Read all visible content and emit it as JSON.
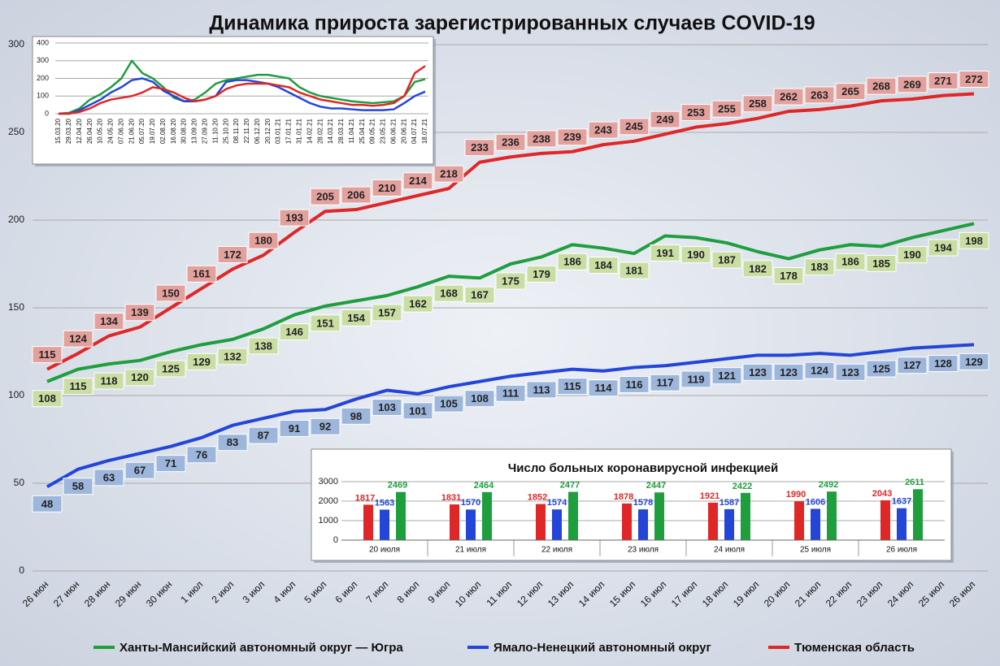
{
  "chart_data": [
    {
      "type": "line",
      "title": "Динамика прироста зарегистрированных случаев COVID-19",
      "categories": [
        "26 июн",
        "27 июн",
        "28 июн",
        "29 июн",
        "30 июн",
        "1 июл",
        "2 июл",
        "3 июл",
        "4 июл",
        "5 июл",
        "6 июл",
        "7 июл",
        "8 июл",
        "9 июл",
        "10 июл",
        "11 июл",
        "12 июл",
        "13 июл",
        "14 июл",
        "15 июл",
        "16 июл",
        "17 июл",
        "18 июл",
        "19 июл",
        "20 июл",
        "21 июл",
        "22 июл",
        "23 июл",
        "24 июл",
        "25 июл",
        "26 июл"
      ],
      "series": [
        {
          "name": "Ханты-Мансийский автономный округ — Югра",
          "color": "#1f9e3e",
          "label_color": "#c9dea3",
          "label_side": "below",
          "values": [
            108,
            115,
            118,
            120,
            125,
            129,
            132,
            138,
            146,
            151,
            154,
            157,
            162,
            168,
            167,
            175,
            179,
            186,
            184,
            181,
            191,
            190,
            187,
            182,
            178,
            183,
            186,
            185,
            190,
            194,
            198
          ]
        },
        {
          "name": "Ямало-Ненецкий автономный округ",
          "color": "#2346d8",
          "label_color": "#9db6db",
          "label_side": "below",
          "values": [
            48,
            58,
            63,
            67,
            71,
            76,
            83,
            87,
            91,
            92,
            98,
            103,
            101,
            105,
            108,
            111,
            113,
            115,
            114,
            116,
            117,
            119,
            121,
            123,
            123,
            124,
            123,
            125,
            127,
            128,
            129
          ]
        },
        {
          "name": "Тюменская область",
          "color": "#e02727",
          "label_color": "#e3a19e",
          "label_side": "above",
          "values": [
            115,
            124,
            134,
            139,
            150,
            161,
            172,
            180,
            193,
            205,
            206,
            210,
            214,
            218,
            233,
            236,
            238,
            239,
            243,
            245,
            249,
            253,
            255,
            258,
            262,
            263,
            265,
            268,
            269,
            271,
            272
          ]
        }
      ],
      "ylim": [
        0,
        300
      ],
      "yticks": [
        0,
        50,
        100,
        150,
        200,
        250,
        300
      ],
      "grid": true,
      "data_labels": true,
      "legend": "bottom"
    },
    {
      "type": "line",
      "categories": [
        "15.03.20",
        "29.03.20",
        "12.04.20",
        "26.04.20",
        "10.05.20",
        "24.05.20",
        "07.06.20",
        "21.06.20",
        "05.07.20",
        "19.07.20",
        "02.08.20",
        "16.08.20",
        "30.08.20",
        "13.09.20",
        "27.09.20",
        "11.10.20",
        "25.10.20",
        "08.11.20",
        "22.11.20",
        "06.12.20",
        "20.12.20",
        "03.01.21",
        "17.01.21",
        "31.01.21",
        "14.02.21",
        "28.02.21",
        "14.03.21",
        "28.03.21",
        "11.04.21",
        "25.04.21",
        "09.05.21",
        "23.05.21",
        "06.06.21",
        "20.06.21",
        "04.07.21",
        "18.07.21"
      ],
      "series": [
        {
          "color": "#1f9e3e",
          "values": [
            0,
            5,
            30,
            80,
            110,
            150,
            200,
            300,
            230,
            200,
            150,
            90,
            70,
            80,
            120,
            170,
            190,
            200,
            210,
            220,
            220,
            210,
            200,
            150,
            120,
            100,
            90,
            80,
            70,
            65,
            60,
            65,
            70,
            100,
            180,
            195
          ]
        },
        {
          "color": "#2346d8",
          "values": [
            0,
            0,
            20,
            50,
            80,
            120,
            150,
            190,
            200,
            180,
            130,
            100,
            70,
            70,
            80,
            100,
            180,
            190,
            190,
            180,
            170,
            150,
            120,
            90,
            60,
            40,
            30,
            30,
            25,
            20,
            20,
            20,
            25,
            60,
            100,
            125
          ]
        },
        {
          "color": "#e02727",
          "values": [
            0,
            0,
            10,
            30,
            60,
            80,
            90,
            100,
            120,
            150,
            140,
            120,
            90,
            70,
            80,
            100,
            140,
            160,
            170,
            170,
            170,
            160,
            150,
            120,
            100,
            80,
            70,
            60,
            50,
            50,
            45,
            50,
            60,
            100,
            230,
            270
          ]
        }
      ],
      "ylim": [
        0,
        400
      ],
      "yticks": [
        0,
        100,
        200,
        300,
        400
      ],
      "grid": true
    },
    {
      "type": "bar",
      "title": "Число больных коронавирусной  инфекцией",
      "categories": [
        "20 июля",
        "21 июля",
        "22 июля",
        "23 июля",
        "24 июля",
        "25 июля",
        "26 июля"
      ],
      "series": [
        {
          "color": "#e02727",
          "values": [
            1817,
            1831,
            1852,
            1878,
            1921,
            1990,
            2043
          ]
        },
        {
          "color": "#2346d8",
          "values": [
            1563,
            1570,
            1574,
            1578,
            1587,
            1606,
            1637
          ]
        },
        {
          "color": "#1f9e3e",
          "values": [
            2469,
            2464,
            2477,
            2447,
            2422,
            2492,
            2611
          ]
        }
      ],
      "ylim": [
        0,
        3000
      ],
      "yticks": [
        0,
        1000,
        2000,
        3000
      ],
      "grid": true,
      "data_labels": true
    }
  ]
}
